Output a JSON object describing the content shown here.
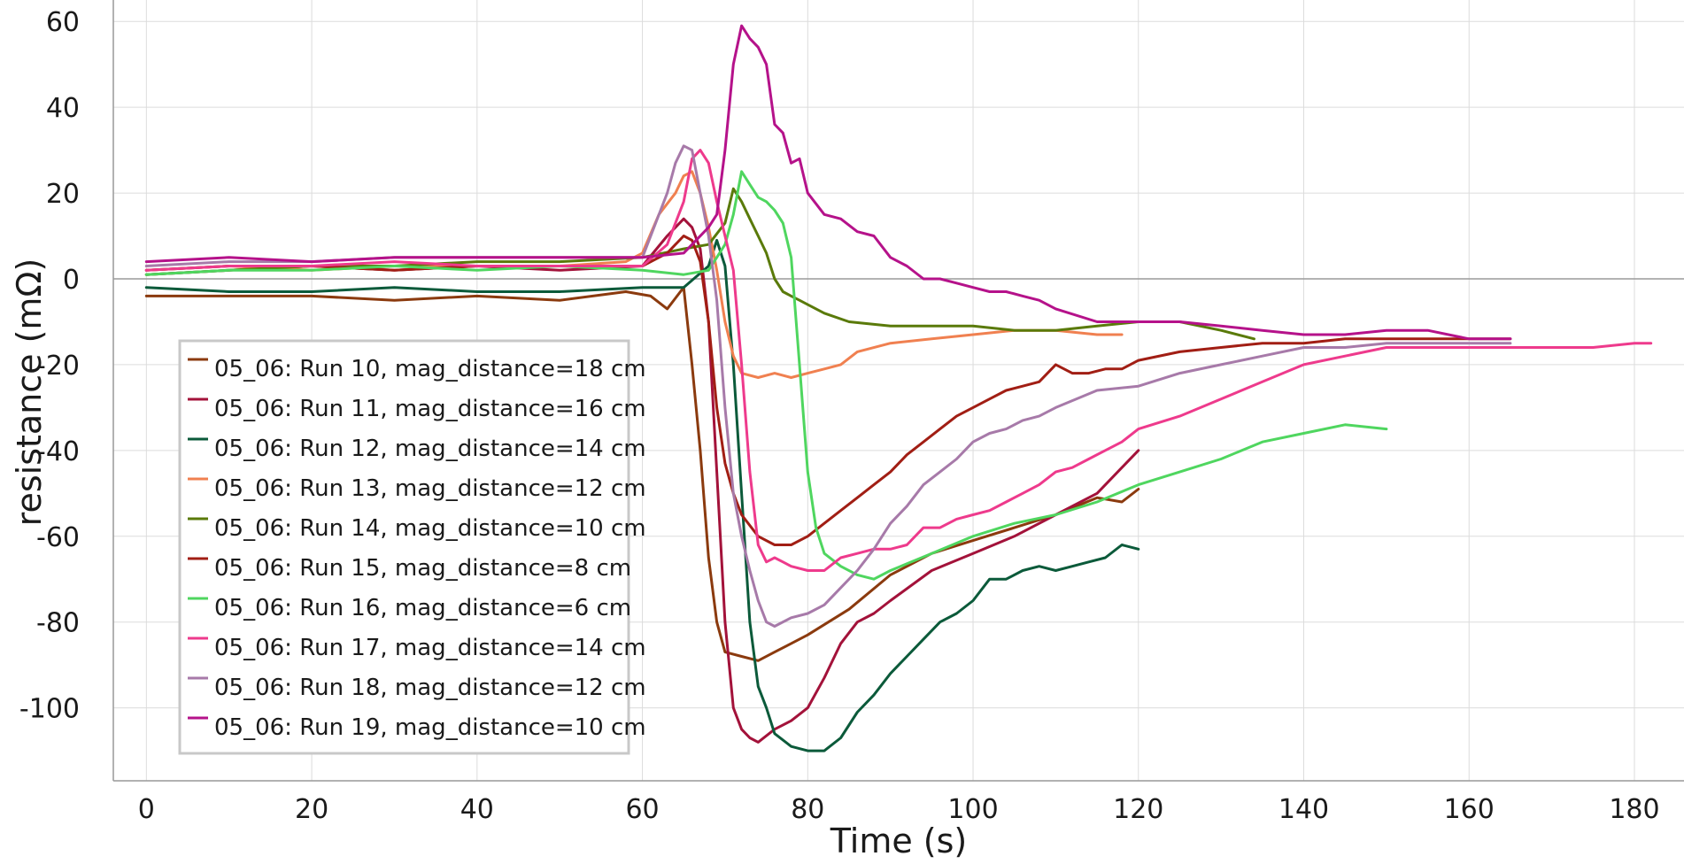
{
  "chart_data": {
    "type": "line",
    "xlabel": "Time (s)",
    "ylabel": "resistance (mΩ)",
    "xlim": [
      -4,
      186
    ],
    "ylim": [
      -117,
      65
    ],
    "x_ticks": [
      0,
      20,
      40,
      60,
      80,
      100,
      120,
      140,
      160,
      180
    ],
    "y_ticks": [
      60,
      40,
      20,
      0,
      -20,
      -40,
      -60,
      -80,
      -100
    ],
    "y_tick_labels": [
      "60",
      "40",
      "20",
      "0",
      "-20",
      "-40",
      "-60",
      "-80",
      "-100"
    ],
    "grid": true,
    "legend_position": "lower-left",
    "series": [
      {
        "name": "05_06: Run 10, mag_distance=18 cm",
        "color": "#8B3A0E",
        "x": [
          0,
          10,
          20,
          30,
          40,
          50,
          58,
          61,
          63,
          65,
          66,
          67,
          68,
          69,
          70,
          72,
          74,
          76,
          78,
          80,
          85,
          90,
          95,
          100,
          105,
          110,
          115,
          118,
          120
        ],
        "y": [
          -4,
          -4,
          -4,
          -5,
          -4,
          -5,
          -3,
          -4,
          -7,
          -2,
          -20,
          -40,
          -65,
          -80,
          -87,
          -88,
          -89,
          -87,
          -85,
          -83,
          -77,
          -69,
          -64,
          -61,
          -58,
          -55,
          -51,
          -52,
          -49
        ]
      },
      {
        "name": "05_06: Run 11, mag_distance=16 cm",
        "color": "#A3123A",
        "x": [
          0,
          10,
          20,
          30,
          40,
          50,
          60,
          63,
          65,
          66,
          67,
          68,
          69,
          70,
          71,
          72,
          73,
          74,
          76,
          78,
          80,
          82,
          84,
          86,
          88,
          90,
          95,
          100,
          105,
          110,
          115,
          118,
          120
        ],
        "y": [
          1,
          2,
          3,
          2,
          3,
          2,
          3,
          10,
          14,
          12,
          7,
          -10,
          -45,
          -80,
          -100,
          -105,
          -107,
          -108,
          -105,
          -103,
          -100,
          -93,
          -85,
          -80,
          -78,
          -75,
          -68,
          -64,
          -60,
          -55,
          -50,
          -44,
          -40
        ]
      },
      {
        "name": "05_06: Run 12, mag_distance=14 cm",
        "color": "#0B5A3A",
        "x": [
          0,
          10,
          20,
          30,
          40,
          50,
          60,
          65,
          68,
          69,
          70,
          71,
          72,
          73,
          74,
          75,
          76,
          78,
          80,
          82,
          84,
          86,
          88,
          90,
          92,
          94,
          96,
          98,
          100,
          102,
          104,
          106,
          108,
          110,
          112,
          114,
          116,
          118,
          120
        ],
        "y": [
          -2,
          -3,
          -3,
          -2,
          -3,
          -3,
          -2,
          -2,
          3,
          9,
          3,
          -20,
          -50,
          -80,
          -95,
          -100,
          -106,
          -109,
          -110,
          -110,
          -107,
          -101,
          -97,
          -92,
          -88,
          -84,
          -80,
          -78,
          -75,
          -70,
          -70,
          -68,
          -67,
          -68,
          -67,
          -66,
          -65,
          -62,
          -63
        ]
      },
      {
        "name": "05_06: Run 13, mag_distance=12 cm",
        "color": "#F08050",
        "x": [
          0,
          10,
          20,
          30,
          40,
          50,
          58,
          60,
          62,
          64,
          65,
          66,
          67,
          68,
          69,
          70,
          71,
          72,
          74,
          76,
          78,
          80,
          82,
          84,
          86,
          90,
          95,
          100,
          105,
          110,
          115,
          118
        ],
        "y": [
          2,
          3,
          2,
          3,
          3,
          3,
          4,
          6,
          15,
          20,
          24,
          25,
          20,
          12,
          2,
          -10,
          -18,
          -22,
          -23,
          -22,
          -23,
          -22,
          -21,
          -20,
          -17,
          -15,
          -14,
          -13,
          -12,
          -12,
          -13,
          -13
        ]
      },
      {
        "name": "05_06: Run 14, mag_distance=10 cm",
        "color": "#5A7A0A",
        "x": [
          0,
          10,
          20,
          30,
          40,
          50,
          60,
          65,
          68,
          70,
          71,
          72,
          73,
          74,
          75,
          76,
          77,
          78,
          79,
          80,
          82,
          85,
          90,
          95,
          100,
          105,
          110,
          115,
          120,
          125,
          130,
          134
        ],
        "y": [
          1,
          2,
          3,
          3,
          4,
          4,
          5,
          7,
          8,
          13,
          21,
          18,
          14,
          10,
          6,
          0,
          -3,
          -4,
          -5,
          -6,
          -8,
          -10,
          -11,
          -11,
          -11,
          -12,
          -12,
          -11,
          -10,
          -10,
          -12,
          -14
        ]
      },
      {
        "name": "05_06: Run 15, mag_distance=8 cm",
        "color": "#A11E14",
        "x": [
          0,
          10,
          20,
          30,
          40,
          50,
          60,
          63,
          65,
          66,
          67,
          68,
          69,
          70,
          71,
          72,
          74,
          76,
          78,
          80,
          82,
          84,
          86,
          88,
          90,
          92,
          94,
          96,
          98,
          100,
          102,
          104,
          106,
          108,
          110,
          112,
          114,
          116,
          118,
          120,
          125,
          130,
          135,
          140,
          145,
          150,
          155,
          160,
          165
        ],
        "y": [
          2,
          3,
          3,
          2,
          3,
          3,
          3,
          6,
          10,
          9,
          4,
          -10,
          -30,
          -43,
          -50,
          -55,
          -60,
          -62,
          -62,
          -60,
          -57,
          -54,
          -51,
          -48,
          -45,
          -41,
          -38,
          -35,
          -32,
          -30,
          -28,
          -26,
          -25,
          -24,
          -20,
          -22,
          -22,
          -21,
          -21,
          -19,
          -17,
          -16,
          -15,
          -15,
          -14,
          -14,
          -14,
          -14,
          -14
        ]
      },
      {
        "name": "05_06: Run 16, mag_distance=6 cm",
        "color": "#4FD65F",
        "x": [
          0,
          10,
          20,
          30,
          40,
          50,
          60,
          65,
          68,
          70,
          71,
          72,
          73,
          74,
          75,
          76,
          77,
          78,
          79,
          80,
          81,
          82,
          84,
          86,
          88,
          90,
          95,
          100,
          105,
          110,
          115,
          120,
          125,
          130,
          135,
          140,
          145,
          150
        ],
        "y": [
          1,
          2,
          2,
          3,
          2,
          3,
          2,
          1,
          2,
          8,
          15,
          25,
          22,
          19,
          18,
          16,
          13,
          5,
          -20,
          -45,
          -58,
          -64,
          -67,
          -69,
          -70,
          -68,
          -64,
          -60,
          -57,
          -55,
          -52,
          -48,
          -45,
          -42,
          -38,
          -36,
          -34,
          -35
        ]
      },
      {
        "name": "05_06: Run 17, mag_distance=14 cm",
        "color": "#EE3A8C",
        "x": [
          0,
          10,
          20,
          30,
          40,
          50,
          60,
          63,
          65,
          66,
          67,
          68,
          69,
          70,
          71,
          72,
          73,
          74,
          75,
          76,
          77,
          78,
          80,
          82,
          84,
          86,
          88,
          90,
          92,
          94,
          96,
          98,
          100,
          102,
          104,
          106,
          108,
          110,
          112,
          114,
          116,
          118,
          120,
          125,
          130,
          135,
          140,
          145,
          150,
          155,
          160,
          165,
          170,
          175,
          180,
          182
        ],
        "y": [
          2,
          3,
          3,
          4,
          3,
          3,
          3,
          8,
          18,
          28,
          30,
          27,
          18,
          10,
          2,
          -20,
          -45,
          -62,
          -66,
          -65,
          -66,
          -67,
          -68,
          -68,
          -65,
          -64,
          -63,
          -63,
          -62,
          -58,
          -58,
          -56,
          -55,
          -54,
          -52,
          -50,
          -48,
          -45,
          -44,
          -42,
          -40,
          -38,
          -35,
          -32,
          -28,
          -24,
          -20,
          -18,
          -16,
          -16,
          -16,
          -16,
          -16,
          -16,
          -15,
          -15
        ]
      },
      {
        "name": "05_06: Run 18, mag_distance=12 cm",
        "color": "#A77AA9",
        "x": [
          0,
          10,
          20,
          30,
          40,
          50,
          60,
          63,
          64,
          65,
          66,
          67,
          68,
          69,
          70,
          71,
          72,
          73,
          74,
          75,
          76,
          78,
          80,
          82,
          84,
          86,
          88,
          90,
          92,
          94,
          96,
          98,
          100,
          102,
          104,
          106,
          108,
          110,
          115,
          120,
          125,
          130,
          135,
          140,
          145,
          150,
          155,
          160,
          165
        ],
        "y": [
          3,
          4,
          4,
          5,
          5,
          5,
          5,
          20,
          27,
          31,
          30,
          20,
          10,
          -5,
          -30,
          -50,
          -60,
          -68,
          -75,
          -80,
          -81,
          -79,
          -78,
          -76,
          -72,
          -68,
          -63,
          -57,
          -53,
          -48,
          -45,
          -42,
          -38,
          -36,
          -35,
          -33,
          -32,
          -30,
          -26,
          -25,
          -22,
          -20,
          -18,
          -16,
          -16,
          -15,
          -15,
          -15,
          -15
        ]
      },
      {
        "name": "05_06: Run 19, mag_distance=10 cm",
        "color": "#B5128A",
        "x": [
          0,
          10,
          20,
          30,
          40,
          50,
          60,
          65,
          66,
          68,
          69,
          70,
          71,
          72,
          73,
          74,
          75,
          76,
          77,
          78,
          79,
          80,
          82,
          84,
          86,
          88,
          90,
          92,
          94,
          96,
          98,
          100,
          102,
          104,
          106,
          108,
          110,
          115,
          120,
          125,
          130,
          135,
          140,
          145,
          150,
          155,
          160,
          165
        ],
        "y": [
          4,
          5,
          4,
          5,
          5,
          5,
          5,
          6,
          8,
          12,
          15,
          30,
          50,
          59,
          56,
          54,
          50,
          36,
          34,
          27,
          28,
          20,
          15,
          14,
          11,
          10,
          5,
          3,
          0,
          0,
          -1,
          -2,
          -3,
          -3,
          -4,
          -5,
          -7,
          -10,
          -10,
          -10,
          -11,
          -12,
          -13,
          -13,
          -12,
          -12,
          -14,
          -14
        ]
      }
    ]
  }
}
